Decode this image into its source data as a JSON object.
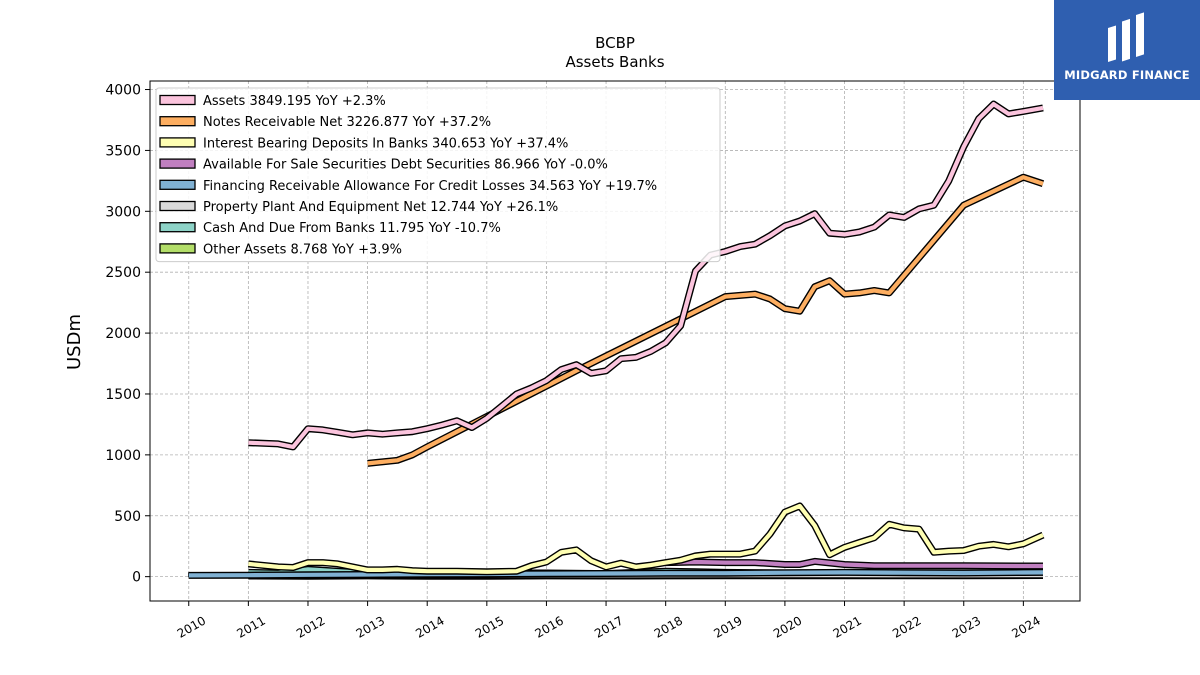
{
  "chart_data": {
    "type": "line",
    "title": "BCBP",
    "subtitle": "Assets Banks",
    "ylabel": "USDm",
    "xlabel": "",
    "ylim": [
      -200,
      4070
    ],
    "xlim": [
      2009.35,
      2024.95
    ],
    "yticks": [
      0,
      500,
      1000,
      1500,
      2000,
      2500,
      3000,
      3500,
      4000
    ],
    "xticks": [
      "2010",
      "2011",
      "2012",
      "2013",
      "2014",
      "2015",
      "2016",
      "2017",
      "2018",
      "2019",
      "2020",
      "2021",
      "2022",
      "2023",
      "2024"
    ],
    "grid": true,
    "legend_position": "upper-left",
    "series": [
      {
        "name": "Assets  3849.195 YoY +2.3%",
        "color": "#fbc4dd",
        "points": [
          [
            2011.0,
            1100
          ],
          [
            2011.5,
            1090
          ],
          [
            2011.75,
            1065
          ],
          [
            2012.0,
            1215
          ],
          [
            2012.25,
            1205
          ],
          [
            2012.5,
            1185
          ],
          [
            2012.75,
            1165
          ],
          [
            2013.0,
            1180
          ],
          [
            2013.25,
            1170
          ],
          [
            2013.5,
            1180
          ],
          [
            2013.75,
            1190
          ],
          [
            2014.0,
            1215
          ],
          [
            2014.25,
            1245
          ],
          [
            2014.5,
            1280
          ],
          [
            2014.75,
            1225
          ],
          [
            2015.0,
            1300
          ],
          [
            2015.25,
            1400
          ],
          [
            2015.5,
            1500
          ],
          [
            2015.75,
            1550
          ],
          [
            2016.0,
            1610
          ],
          [
            2016.25,
            1700
          ],
          [
            2016.5,
            1740
          ],
          [
            2016.75,
            1670
          ],
          [
            2017.0,
            1690
          ],
          [
            2017.25,
            1790
          ],
          [
            2017.5,
            1800
          ],
          [
            2017.75,
            1850
          ],
          [
            2018.0,
            1920
          ],
          [
            2018.25,
            2060
          ],
          [
            2018.5,
            2510
          ],
          [
            2018.75,
            2640
          ],
          [
            2019.0,
            2670
          ],
          [
            2019.25,
            2710
          ],
          [
            2019.5,
            2730
          ],
          [
            2019.75,
            2800
          ],
          [
            2020.0,
            2880
          ],
          [
            2020.25,
            2920
          ],
          [
            2020.5,
            2980
          ],
          [
            2020.75,
            2820
          ],
          [
            2021.0,
            2810
          ],
          [
            2021.25,
            2830
          ],
          [
            2021.5,
            2870
          ],
          [
            2021.75,
            2970
          ],
          [
            2022.0,
            2950
          ],
          [
            2022.25,
            3020
          ],
          [
            2022.5,
            3050
          ],
          [
            2022.75,
            3250
          ],
          [
            2023.0,
            3530
          ],
          [
            2023.25,
            3760
          ],
          [
            2023.5,
            3880
          ],
          [
            2023.75,
            3800
          ],
          [
            2024.0,
            3820
          ],
          [
            2024.33,
            3849
          ]
        ]
      },
      {
        "name": "Notes Receivable Net  3226.877 YoY +37.2%",
        "color": "#fdae61",
        "points": [
          [
            2013.0,
            930
          ],
          [
            2013.5,
            955
          ],
          [
            2013.75,
            1000
          ],
          [
            2014.0,
            1065
          ],
          [
            2016.5,
            1690
          ],
          [
            2019.0,
            2300
          ],
          [
            2019.5,
            2320
          ],
          [
            2019.75,
            2280
          ],
          [
            2020.0,
            2200
          ],
          [
            2020.25,
            2180
          ],
          [
            2020.5,
            2380
          ],
          [
            2020.75,
            2430
          ],
          [
            2021.0,
            2320
          ],
          [
            2021.25,
            2330
          ],
          [
            2021.5,
            2350
          ],
          [
            2021.75,
            2330
          ],
          [
            2023.0,
            3050
          ],
          [
            2024.0,
            3280
          ],
          [
            2024.33,
            3227
          ]
        ]
      },
      {
        "name": "Interest Bearing Deposits In Banks  340.653 YoY +37.4%",
        "color": "#ffffb3",
        "points": [
          [
            2011.0,
            105
          ],
          [
            2011.5,
            80
          ],
          [
            2011.75,
            75
          ],
          [
            2012.0,
            115
          ],
          [
            2012.25,
            115
          ],
          [
            2012.5,
            105
          ],
          [
            2012.75,
            80
          ],
          [
            2013.0,
            55
          ],
          [
            2013.25,
            55
          ],
          [
            2013.5,
            60
          ],
          [
            2013.75,
            50
          ],
          [
            2014.0,
            45
          ],
          [
            2014.5,
            45
          ],
          [
            2015.0,
            40
          ],
          [
            2015.5,
            45
          ],
          [
            2015.75,
            90
          ],
          [
            2016.0,
            120
          ],
          [
            2016.25,
            200
          ],
          [
            2016.5,
            220
          ],
          [
            2016.75,
            130
          ],
          [
            2017.0,
            80
          ],
          [
            2017.25,
            110
          ],
          [
            2017.5,
            80
          ],
          [
            2017.75,
            95
          ],
          [
            2018.0,
            115
          ],
          [
            2018.25,
            135
          ],
          [
            2018.5,
            170
          ],
          [
            2018.75,
            185
          ],
          [
            2019.0,
            185
          ],
          [
            2019.25,
            185
          ],
          [
            2019.5,
            210
          ],
          [
            2019.75,
            350
          ],
          [
            2020.0,
            530
          ],
          [
            2020.25,
            580
          ],
          [
            2020.5,
            420
          ],
          [
            2020.75,
            180
          ],
          [
            2021.0,
            240
          ],
          [
            2021.25,
            280
          ],
          [
            2021.5,
            320
          ],
          [
            2021.75,
            430
          ],
          [
            2022.0,
            400
          ],
          [
            2022.25,
            390
          ],
          [
            2022.5,
            200
          ],
          [
            2022.75,
            210
          ],
          [
            2023.0,
            215
          ],
          [
            2023.25,
            250
          ],
          [
            2023.5,
            265
          ],
          [
            2023.75,
            245
          ],
          [
            2024.0,
            270
          ],
          [
            2024.33,
            341
          ]
        ]
      },
      {
        "name": "Available For Sale Securities Debt Securities  86.966 YoY -0.0%",
        "color": "#c07fc0",
        "points": [
          [
            2018.0,
            115
          ],
          [
            2018.5,
            120
          ],
          [
            2019.0,
            115
          ],
          [
            2019.5,
            115
          ],
          [
            2020.0,
            100
          ],
          [
            2020.25,
            100
          ],
          [
            2020.5,
            125
          ],
          [
            2021.0,
            100
          ],
          [
            2021.5,
            90
          ],
          [
            2022.0,
            90
          ],
          [
            2022.5,
            90
          ],
          [
            2023.0,
            90
          ],
          [
            2023.5,
            88
          ],
          [
            2024.0,
            87
          ],
          [
            2024.33,
            87
          ]
        ]
      },
      {
        "name": "Financing Receivable Allowance For Credit Losses  34.563 YoY +19.7%",
        "color": "#80b1d3",
        "points": [
          [
            2010.0,
            10
          ],
          [
            2011.0,
            12
          ],
          [
            2012.0,
            15
          ],
          [
            2013.0,
            18
          ],
          [
            2014.0,
            20
          ],
          [
            2015.0,
            22
          ],
          [
            2016.0,
            24
          ],
          [
            2017.0,
            26
          ],
          [
            2018.0,
            28
          ],
          [
            2019.0,
            28
          ],
          [
            2020.0,
            32
          ],
          [
            2021.0,
            35
          ],
          [
            2022.0,
            32
          ],
          [
            2023.0,
            30
          ],
          [
            2024.0,
            34
          ],
          [
            2024.33,
            35
          ]
        ]
      },
      {
        "name": "Property Plant And Equipment Net  12.744 YoY +26.1%",
        "color": "#d9d9d9",
        "points": [
          [
            2011.0,
            10
          ],
          [
            2013.0,
            11
          ],
          [
            2015.0,
            11
          ],
          [
            2017.0,
            11
          ],
          [
            2019.0,
            12
          ],
          [
            2021.0,
            12
          ],
          [
            2023.0,
            11
          ],
          [
            2024.33,
            13
          ]
        ]
      },
      {
        "name": "Cash And Due From Banks  11.795 YoY -10.7%",
        "color": "#8dd3c7",
        "points": [
          [
            2011.0,
            35
          ],
          [
            2011.5,
            30
          ],
          [
            2012.0,
            60
          ],
          [
            2012.5,
            45
          ],
          [
            2013.0,
            30
          ],
          [
            2013.5,
            40
          ],
          [
            2014.0,
            25
          ],
          [
            2015.0,
            30
          ],
          [
            2016.0,
            30
          ],
          [
            2017.0,
            25
          ],
          [
            2018.0,
            45
          ],
          [
            2018.5,
            40
          ],
          [
            2019.0,
            35
          ],
          [
            2020.0,
            30
          ],
          [
            2021.0,
            20
          ],
          [
            2022.0,
            15
          ],
          [
            2023.0,
            14
          ],
          [
            2024.33,
            12
          ]
        ]
      },
      {
        "name": "Other Assets  8.768 YoY +3.9%",
        "color": "#b3de69",
        "points": [
          [
            2011.0,
            5
          ],
          [
            2012.0,
            4
          ],
          [
            2013.0,
            6
          ],
          [
            2014.0,
            3
          ],
          [
            2015.0,
            4
          ],
          [
            2016.0,
            6
          ],
          [
            2017.0,
            5
          ],
          [
            2018.0,
            6
          ],
          [
            2019.0,
            7
          ],
          [
            2020.0,
            7
          ],
          [
            2021.0,
            8
          ],
          [
            2022.0,
            8
          ],
          [
            2023.0,
            8
          ],
          [
            2024.33,
            9
          ]
        ]
      }
    ],
    "bands": [
      {
        "series": "Financing Receivable Allowance For Credit Losses  34.563 YoY +19.7%",
        "x": [
          2010.0,
          2011.0
        ],
        "y": [
          0,
          30
        ]
      }
    ]
  },
  "logo": {
    "text": "MIDGARD FINANCE",
    "background": "#2f5fb0",
    "foreground": "#ffffff"
  }
}
